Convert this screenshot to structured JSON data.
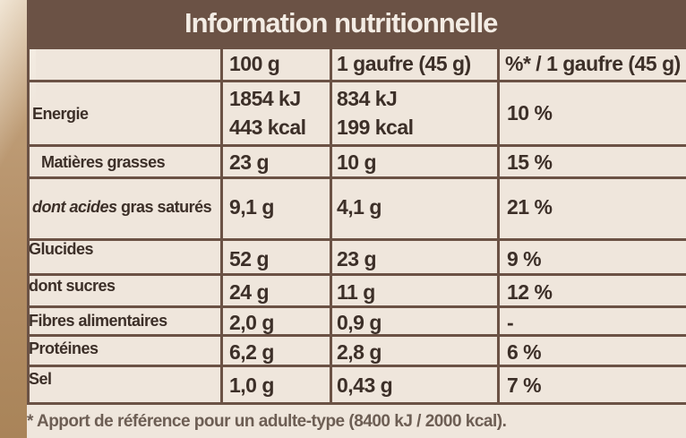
{
  "title": "Information nutritionnelle",
  "columns": [
    "100 g",
    "1 gaufre (45 g)",
    "%* / 1 gaufre (45 g)"
  ],
  "rows": [
    {
      "label": "Energie",
      "per100": [
        "1854 kJ",
        "443 kcal"
      ],
      "per_waffle": [
        "834 kJ",
        "199 kcal"
      ],
      "percent": "10 %"
    },
    {
      "label": "Matières grasses",
      "per100": "23 g",
      "per_waffle": "10 g",
      "percent": "15 %"
    },
    {
      "label_italic": "dont acides",
      "label_rest": " gras saturés",
      "per100": "9,1 g",
      "per_waffle": "4,1 g",
      "percent": "21 %"
    },
    {
      "label": "Glucides",
      "per100": "52 g",
      "per_waffle": "23 g",
      "percent": "9 %"
    },
    {
      "label": "dont sucres",
      "per100": "24 g",
      "per_waffle": "11 g",
      "percent": "12 %"
    },
    {
      "label": "Fibres alimentaires",
      "per100": "2,0 g",
      "per_waffle": "0,9 g",
      "percent": "-"
    },
    {
      "label": "Protéines",
      "per100": "6,2 g",
      "per_waffle": "2,8 g",
      "percent": "6 %"
    },
    {
      "label": "Sel",
      "per100": "1,0 g",
      "per_waffle": "0,43 g",
      "percent": "7 %"
    }
  ],
  "footnote": "* Apport de référence pour un adulte-type (8400 kJ / 2000 kcal)."
}
